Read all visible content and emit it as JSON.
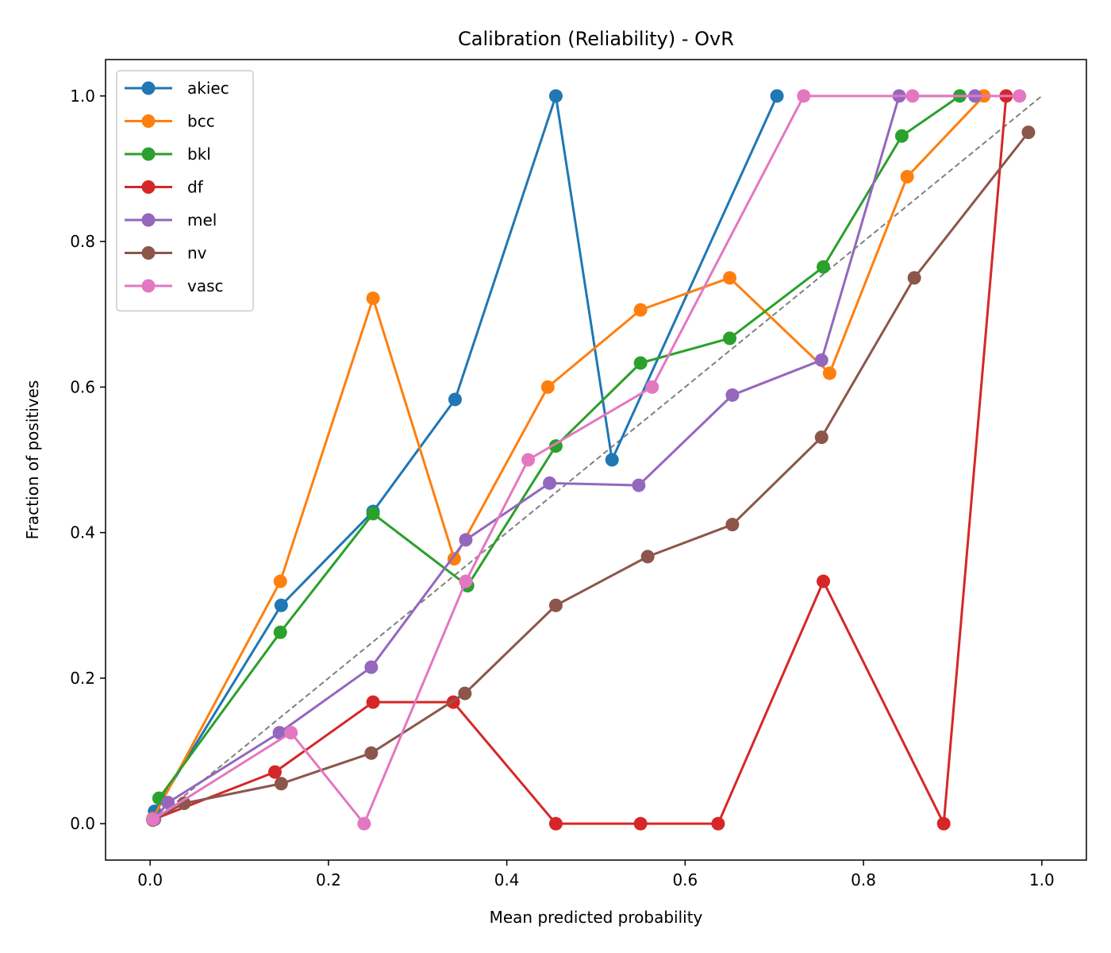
{
  "chart_data": {
    "type": "line",
    "title": "Calibration (Reliability) - OvR",
    "xlabel": "Mean predicted probability",
    "ylabel": "Fraction of positives",
    "xlim": [
      -0.05,
      1.05
    ],
    "ylim": [
      -0.05,
      1.05
    ],
    "xticks": [
      0.0,
      0.2,
      0.4,
      0.6,
      0.8,
      1.0
    ],
    "yticks": [
      0.0,
      0.2,
      0.4,
      0.6,
      0.8,
      1.0
    ],
    "xtick_labels": [
      "0.0",
      "0.2",
      "0.4",
      "0.6",
      "0.8",
      "1.0"
    ],
    "ytick_labels": [
      "0.0",
      "0.2",
      "0.4",
      "0.6",
      "0.8",
      "1.0"
    ],
    "grid": false,
    "legend_position": "top-left",
    "reference_line": {
      "x": [
        0,
        1
      ],
      "y": [
        0,
        1
      ],
      "style": "dashed",
      "color": "#808080"
    },
    "series": [
      {
        "name": "akiec",
        "color": "#1f77b4",
        "x": [
          0.005,
          0.147,
          0.25,
          0.342,
          0.455,
          0.518,
          0.703
        ],
        "y": [
          0.017,
          0.3,
          0.429,
          0.583,
          1.0,
          0.5,
          1.0
        ]
      },
      {
        "name": "bcc",
        "color": "#ff7f0e",
        "x": [
          0.003,
          0.146,
          0.25,
          0.341,
          0.446,
          0.55,
          0.65,
          0.762,
          0.849,
          0.935
        ],
        "y": [
          0.007,
          0.333,
          0.722,
          0.364,
          0.6,
          0.706,
          0.75,
          0.619,
          0.889,
          1.0
        ]
      },
      {
        "name": "bkl",
        "color": "#2ca02c",
        "x": [
          0.01,
          0.146,
          0.25,
          0.356,
          0.455,
          0.55,
          0.65,
          0.755,
          0.843,
          0.908
        ],
        "y": [
          0.035,
          0.263,
          0.426,
          0.327,
          0.519,
          0.633,
          0.667,
          0.765,
          0.945,
          1.0
        ]
      },
      {
        "name": "df",
        "color": "#d62728",
        "x": [
          0.004,
          0.14,
          0.25,
          0.34,
          0.455,
          0.55,
          0.637,
          0.755,
          0.89,
          0.96
        ],
        "y": [
          0.006,
          0.071,
          0.167,
          0.167,
          0.0,
          0.0,
          0.0,
          0.333,
          0.0,
          1.0
        ]
      },
      {
        "name": "mel",
        "color": "#9467bd",
        "x": [
          0.005,
          0.02,
          0.145,
          0.248,
          0.354,
          0.448,
          0.548,
          0.653,
          0.753,
          0.84,
          0.925
        ],
        "y": [
          0.006,
          0.029,
          0.125,
          0.215,
          0.39,
          0.468,
          0.465,
          0.589,
          0.637,
          1.0,
          1.0
        ]
      },
      {
        "name": "nv",
        "color": "#8c564b",
        "x": [
          0.003,
          0.038,
          0.147,
          0.248,
          0.353,
          0.455,
          0.558,
          0.653,
          0.753,
          0.857,
          0.985
        ],
        "y": [
          0.005,
          0.028,
          0.055,
          0.097,
          0.179,
          0.3,
          0.367,
          0.411,
          0.531,
          0.75,
          0.95
        ]
      },
      {
        "name": "vasc",
        "color": "#e377c2",
        "x": [
          0.003,
          0.158,
          0.24,
          0.354,
          0.424,
          0.563,
          0.733,
          0.855,
          0.975
        ],
        "y": [
          0.006,
          0.125,
          0.0,
          0.333,
          0.5,
          0.6,
          1.0,
          1.0,
          1.0
        ]
      }
    ]
  }
}
